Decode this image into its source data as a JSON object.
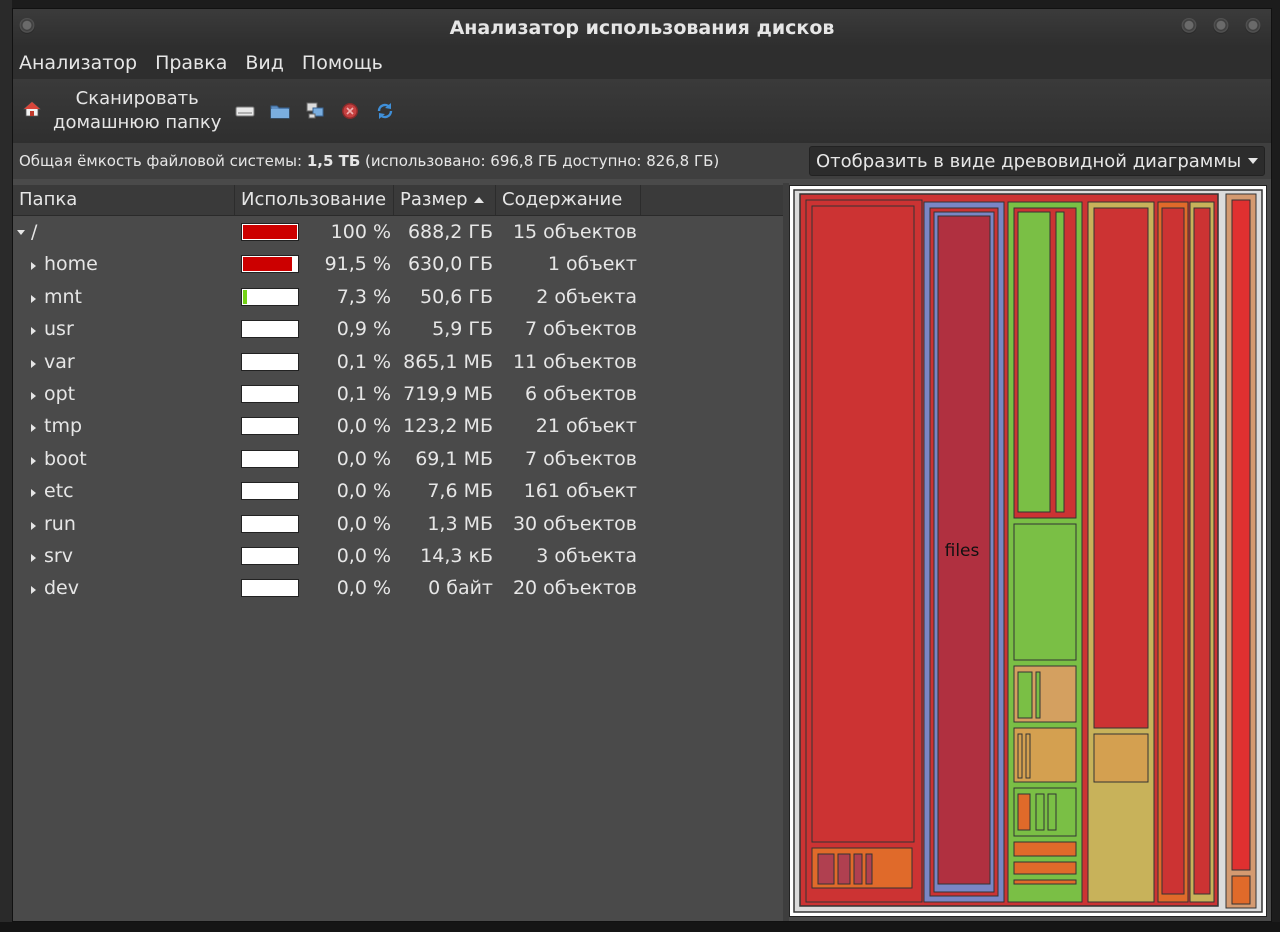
{
  "window": {
    "title": "Анализатор использования дисков"
  },
  "menu": [
    "Анализатор",
    "Правка",
    "Вид",
    "Помощь"
  ],
  "toolbar": {
    "scan_home_line1": "Сканировать",
    "scan_home_line2": "домашнюю папку",
    "icons": [
      "home-icon",
      "drive-icon",
      "folder-icon",
      "network-folder-icon",
      "stop-icon",
      "refresh-icon"
    ]
  },
  "info": {
    "prefix": "Общая ёмкость файловой системы: ",
    "total": "1,5 ТБ",
    "suffix": " (использовано: 696,8 ГБ доступно: 826,8 ГБ)"
  },
  "view_select": {
    "value": "Отобразить в виде древовидной диаграммы"
  },
  "columns": {
    "folder": "Папка",
    "usage": "Использование",
    "size": "Размер",
    "contents": "Содержание"
  },
  "rows": [
    {
      "name": "/",
      "pct": "100 %",
      "size": "688,2 ГБ",
      "contents": "15 объектов",
      "usage": 1.0,
      "fill": "#cc0000",
      "expanded": true
    },
    {
      "name": "home",
      "pct": "91,5 %",
      "size": "630,0 ГБ",
      "contents": "1 объект",
      "usage": 0.915,
      "fill": "#cc0000"
    },
    {
      "name": "mnt",
      "pct": "7,3 %",
      "size": "50,6 ГБ",
      "contents": "2 объекта",
      "usage": 0.073,
      "fill": "#73d216"
    },
    {
      "name": "usr",
      "pct": "0,9 %",
      "size": "5,9 ГБ",
      "contents": "7 объектов",
      "usage": 0.009,
      "fill": "#73d216"
    },
    {
      "name": "var",
      "pct": "0,1 %",
      "size": "865,1 МБ",
      "contents": "11 объектов",
      "usage": 0.001,
      "fill": "#73d216"
    },
    {
      "name": "opt",
      "pct": "0,1 %",
      "size": "719,9 МБ",
      "contents": "6 объектов",
      "usage": 0.001,
      "fill": "#73d216"
    },
    {
      "name": "tmp",
      "pct": "0,0 %",
      "size": "123,2 МБ",
      "contents": "21 объект",
      "usage": 0.0,
      "fill": "#73d216"
    },
    {
      "name": "boot",
      "pct": "0,0 %",
      "size": "69,1 МБ",
      "contents": "7 объектов",
      "usage": 0.0,
      "fill": "#73d216"
    },
    {
      "name": "etc",
      "pct": "0,0 %",
      "size": "7,6 МБ",
      "contents": "161 объект",
      "usage": 0.0,
      "fill": "#73d216"
    },
    {
      "name": "run",
      "pct": "0,0 %",
      "size": "1,3 МБ",
      "contents": "30 объектов",
      "usage": 0.0,
      "fill": "#73d216"
    },
    {
      "name": "srv",
      "pct": "0,0 %",
      "size": "14,3 кБ",
      "contents": "3 объекта",
      "usage": 0.0,
      "fill": "#73d216"
    },
    {
      "name": "dev",
      "pct": "0,0 %",
      "size": "0 байт",
      "contents": "20 объектов",
      "usage": 0.0,
      "fill": "#73d216"
    }
  ],
  "treemap": {
    "label": "files"
  },
  "colors": {
    "treemap_red": "#cc3333",
    "treemap_green": "#7abf45",
    "treemap_orange": "#e06a2a",
    "treemap_tan": "#c8b25a",
    "treemap_blue": "#7a86c4"
  }
}
